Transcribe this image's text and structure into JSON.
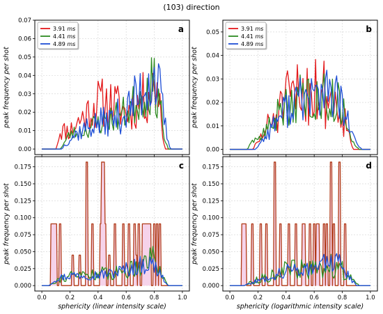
{
  "figure_title": "(103) direction",
  "colors": {
    "red": "#e31a1c",
    "green": "#2e8b22",
    "blue": "#1f4fd6",
    "fill": "#f6d3ea",
    "dark": "#b03a16"
  },
  "chart_data": [
    {
      "id": "a",
      "type": "line",
      "label": "a",
      "ylabel": "peak frequency per shot",
      "xlabel": "",
      "xlim": [
        -0.05,
        1.05
      ],
      "ylim": [
        -0.003,
        0.07
      ],
      "xticks": [
        "0.0",
        "0.2",
        "0.4",
        "0.6",
        "0.8",
        "1.0"
      ],
      "yticks": [
        "0.00",
        "0.01",
        "0.02",
        "0.03",
        "0.04",
        "0.05",
        "0.06",
        "0.07"
      ],
      "grid": true,
      "legend": "top-left",
      "series": [
        {
          "name": "3.91",
          "unit": "ms",
          "color": "red",
          "anchors": [
            [
              0,
              0
            ],
            [
              0.1,
              0
            ],
            [
              0.13,
              0.01
            ],
            [
              0.2,
              0.01
            ],
            [
              0.3,
              0.018
            ],
            [
              0.4,
              0.025
            ],
            [
              0.5,
              0.025
            ],
            [
              0.6,
              0.02
            ],
            [
              0.7,
              0.025
            ],
            [
              0.78,
              0.032
            ],
            [
              0.83,
              0.035
            ],
            [
              0.86,
              0.01
            ],
            [
              0.88,
              0
            ],
            [
              1,
              0
            ]
          ],
          "noise": 0.35,
          "seed": 11
        },
        {
          "name": "4.41",
          "unit": "ms",
          "color": "green",
          "anchors": [
            [
              0,
              0
            ],
            [
              0.13,
              0
            ],
            [
              0.2,
              0.008
            ],
            [
              0.3,
              0.01
            ],
            [
              0.4,
              0.014
            ],
            [
              0.5,
              0.017
            ],
            [
              0.6,
              0.02
            ],
            [
              0.7,
              0.028
            ],
            [
              0.78,
              0.035
            ],
            [
              0.84,
              0.03
            ],
            [
              0.87,
              0.005
            ],
            [
              0.9,
              0
            ],
            [
              1,
              0
            ]
          ],
          "noise": 0.3,
          "seed": 23
        },
        {
          "name": "4.89",
          "unit": "ms",
          "color": "blue",
          "anchors": [
            [
              0,
              0
            ],
            [
              0.14,
              0
            ],
            [
              0.2,
              0.006
            ],
            [
              0.3,
              0.011
            ],
            [
              0.4,
              0.014
            ],
            [
              0.5,
              0.016
            ],
            [
              0.6,
              0.02
            ],
            [
              0.7,
              0.03
            ],
            [
              0.76,
              0.04
            ],
            [
              0.82,
              0.038
            ],
            [
              0.86,
              0.02
            ],
            [
              0.9,
              0.003
            ],
            [
              0.92,
              0
            ],
            [
              1,
              0
            ]
          ],
          "noise": 0.35,
          "seed": 37
        }
      ]
    },
    {
      "id": "b",
      "type": "line",
      "label": "b",
      "ylabel": "peak frequency per shot",
      "xlabel": "",
      "xlim": [
        -0.05,
        1.05
      ],
      "ylim": [
        -0.0022,
        0.055
      ],
      "xticks": [
        "0.0",
        "0.2",
        "0.4",
        "0.6",
        "0.8",
        "1.0"
      ],
      "yticks": [
        "0.00",
        "0.01",
        "0.02",
        "0.03",
        "0.04",
        "0.05"
      ],
      "grid": true,
      "legend": "top-left",
      "series": [
        {
          "name": "3.91",
          "unit": "ms",
          "color": "red",
          "anchors": [
            [
              0,
              0
            ],
            [
              0.16,
              0
            ],
            [
              0.2,
              0.003
            ],
            [
              0.25,
              0.008
            ],
            [
              0.3,
              0.012
            ],
            [
              0.4,
              0.02
            ],
            [
              0.5,
              0.024
            ],
            [
              0.6,
              0.026
            ],
            [
              0.7,
              0.023
            ],
            [
              0.78,
              0.02
            ],
            [
              0.82,
              0.012
            ],
            [
              0.86,
              0.004
            ],
            [
              0.88,
              0
            ],
            [
              1,
              0
            ]
          ],
          "noise": 0.4,
          "seed": 51
        },
        {
          "name": "4.41",
          "unit": "ms",
          "color": "green",
          "anchors": [
            [
              0,
              0
            ],
            [
              0.12,
              0
            ],
            [
              0.18,
              0.004
            ],
            [
              0.25,
              0.007
            ],
            [
              0.3,
              0.012
            ],
            [
              0.4,
              0.018
            ],
            [
              0.5,
              0.022
            ],
            [
              0.6,
              0.022
            ],
            [
              0.7,
              0.022
            ],
            [
              0.78,
              0.02
            ],
            [
              0.84,
              0.01
            ],
            [
              0.88,
              0.003
            ],
            [
              0.92,
              0
            ],
            [
              1,
              0
            ]
          ],
          "noise": 0.3,
          "seed": 63
        },
        {
          "name": "4.89",
          "unit": "ms",
          "color": "blue",
          "anchors": [
            [
              0,
              0
            ],
            [
              0.18,
              0
            ],
            [
              0.22,
              0.003
            ],
            [
              0.28,
              0.008
            ],
            [
              0.35,
              0.014
            ],
            [
              0.45,
              0.02
            ],
            [
              0.55,
              0.022
            ],
            [
              0.65,
              0.024
            ],
            [
              0.75,
              0.023
            ],
            [
              0.82,
              0.015
            ],
            [
              0.87,
              0.006
            ],
            [
              0.92,
              0.001
            ],
            [
              0.94,
              0
            ],
            [
              1,
              0
            ]
          ],
          "noise": 0.3,
          "seed": 77
        }
      ]
    },
    {
      "id": "c",
      "type": "line",
      "label": "c",
      "ylabel": "peak frequency per shot",
      "xlabel": "sphericity (linear intensity scale)",
      "xlim": [
        -0.05,
        1.05
      ],
      "ylim": [
        -0.008,
        0.19
      ],
      "xticks": [
        "0.0",
        "0.2",
        "0.4",
        "0.6",
        "0.8",
        "1.0"
      ],
      "yticks": [
        "0.000",
        "0.025",
        "0.050",
        "0.075",
        "0.100",
        "0.125",
        "0.150",
        "0.175"
      ],
      "grid": true,
      "legend": "",
      "spikes": [
        [
          0.07,
          0.091
        ],
        [
          0.08,
          0.091
        ],
        [
          0.09,
          0.091
        ],
        [
          0.1,
          0.091
        ],
        [
          0.13,
          0.091
        ],
        [
          0.22,
          0.045
        ],
        [
          0.27,
          0.045
        ],
        [
          0.32,
          0.182
        ],
        [
          0.36,
          0.091
        ],
        [
          0.42,
          0.091
        ],
        [
          0.43,
          0.182
        ],
        [
          0.44,
          0.182
        ],
        [
          0.45,
          0.091
        ],
        [
          0.48,
          0.045
        ],
        [
          0.52,
          0.091
        ],
        [
          0.58,
          0.091
        ],
        [
          0.62,
          0.091
        ],
        [
          0.66,
          0.091
        ],
        [
          0.67,
          0.045
        ],
        [
          0.69,
          0.091
        ],
        [
          0.72,
          0.091
        ],
        [
          0.73,
          0.091
        ],
        [
          0.74,
          0.091
        ],
        [
          0.75,
          0.091
        ],
        [
          0.76,
          0.091
        ],
        [
          0.77,
          0.091
        ],
        [
          0.8,
          0.091
        ],
        [
          0.82,
          0.091
        ],
        [
          0.84,
          0.091
        ]
      ],
      "series": [
        {
          "name": "3.91",
          "unit": "ms",
          "color": "dark",
          "anchors": [],
          "noise": 0,
          "seed": 1
        },
        {
          "name": "4.41",
          "unit": "ms",
          "color": "green",
          "anchors": [
            [
              0,
              0
            ],
            [
              0.05,
              0
            ],
            [
              0.1,
              0.008
            ],
            [
              0.2,
              0.014
            ],
            [
              0.3,
              0.016
            ],
            [
              0.4,
              0.018
            ],
            [
              0.5,
              0.018
            ],
            [
              0.6,
              0.022
            ],
            [
              0.7,
              0.032
            ],
            [
              0.78,
              0.045
            ],
            [
              0.84,
              0.025
            ],
            [
              0.88,
              0.005
            ],
            [
              0.9,
              0
            ],
            [
              1,
              0
            ]
          ],
          "noise": 0.35,
          "seed": 91
        },
        {
          "name": "4.89",
          "unit": "ms",
          "color": "blue",
          "anchors": [
            [
              0,
              0
            ],
            [
              0.05,
              0
            ],
            [
              0.1,
              0.01
            ],
            [
              0.2,
              0.015
            ],
            [
              0.3,
              0.016
            ],
            [
              0.4,
              0.016
            ],
            [
              0.5,
              0.018
            ],
            [
              0.6,
              0.024
            ],
            [
              0.7,
              0.03
            ],
            [
              0.78,
              0.032
            ],
            [
              0.84,
              0.02
            ],
            [
              0.88,
              0.004
            ],
            [
              0.9,
              0
            ],
            [
              1,
              0
            ]
          ],
          "noise": 0.3,
          "seed": 97
        }
      ]
    },
    {
      "id": "d",
      "type": "line",
      "label": "d",
      "ylabel": "peak frequency per shot",
      "xlabel": "sphericity (logarithmic intensity scale)",
      "xlim": [
        -0.05,
        1.05
      ],
      "ylim": [
        -0.008,
        0.19
      ],
      "xticks": [
        "0.0",
        "0.2",
        "0.4",
        "0.6",
        "0.8",
        "1.0"
      ],
      "yticks": [
        "0.000",
        "0.025",
        "0.050",
        "0.075",
        "0.100",
        "0.125",
        "0.150",
        "0.175"
      ],
      "grid": true,
      "legend": "",
      "spikes": [
        [
          0.09,
          0.091
        ],
        [
          0.1,
          0.091
        ],
        [
          0.11,
          0.091
        ],
        [
          0.16,
          0.091
        ],
        [
          0.22,
          0.091
        ],
        [
          0.26,
          0.091
        ],
        [
          0.32,
          0.182
        ],
        [
          0.36,
          0.091
        ],
        [
          0.42,
          0.091
        ],
        [
          0.47,
          0.091
        ],
        [
          0.52,
          0.091
        ],
        [
          0.53,
          0.091
        ],
        [
          0.57,
          0.091
        ],
        [
          0.6,
          0.091
        ],
        [
          0.62,
          0.091
        ],
        [
          0.63,
          0.091
        ],
        [
          0.67,
          0.091
        ],
        [
          0.69,
          0.091
        ],
        [
          0.72,
          0.182
        ],
        [
          0.74,
          0.091
        ],
        [
          0.78,
          0.182
        ],
        [
          0.82,
          0.091
        ]
      ],
      "series": [
        {
          "name": "3.91",
          "unit": "ms",
          "color": "dark",
          "anchors": [],
          "noise": 0,
          "seed": 2
        },
        {
          "name": "4.41",
          "unit": "ms",
          "color": "green",
          "anchors": [
            [
              0,
              0
            ],
            [
              0.1,
              0
            ],
            [
              0.15,
              0.005
            ],
            [
              0.25,
              0.012
            ],
            [
              0.35,
              0.02
            ],
            [
              0.45,
              0.025
            ],
            [
              0.55,
              0.022
            ],
            [
              0.65,
              0.025
            ],
            [
              0.75,
              0.03
            ],
            [
              0.82,
              0.02
            ],
            [
              0.88,
              0.006
            ],
            [
              0.92,
              0
            ],
            [
              1,
              0
            ]
          ],
          "noise": 0.4,
          "seed": 113
        },
        {
          "name": "4.89",
          "unit": "ms",
          "color": "blue",
          "anchors": [
            [
              0,
              0
            ],
            [
              0.1,
              0
            ],
            [
              0.15,
              0.004
            ],
            [
              0.25,
              0.01
            ],
            [
              0.35,
              0.018
            ],
            [
              0.45,
              0.024
            ],
            [
              0.55,
              0.026
            ],
            [
              0.65,
              0.03
            ],
            [
              0.75,
              0.036
            ],
            [
              0.8,
              0.03
            ],
            [
              0.86,
              0.01
            ],
            [
              0.9,
              0
            ],
            [
              1,
              0
            ]
          ],
          "noise": 0.3,
          "seed": 127
        }
      ]
    }
  ]
}
